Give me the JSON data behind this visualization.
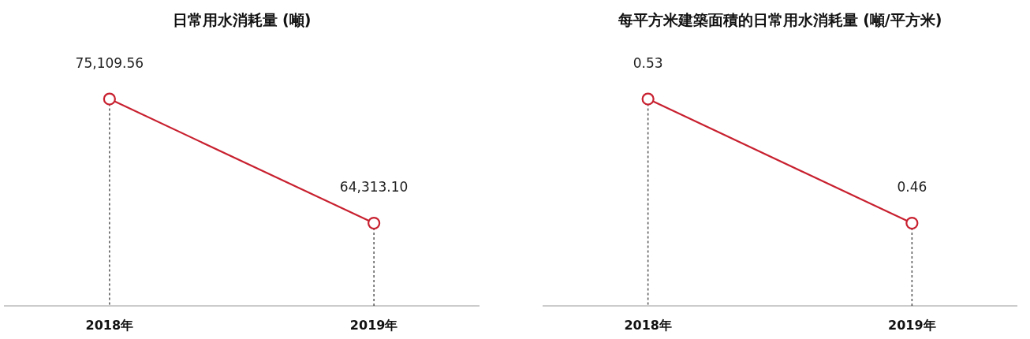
{
  "chart_data": [
    {
      "type": "line",
      "title": "日常用水消耗量 (噸)",
      "categories": [
        "2018年",
        "2019年"
      ],
      "series": [
        {
          "color": "#c8202f",
          "values": [
            75109.56,
            64313.1
          ],
          "value_labels": [
            "75,109.56",
            "64,313.10"
          ]
        }
      ],
      "tick_labels": "x",
      "marker": "circle",
      "grid": "x"
    },
    {
      "type": "line",
      "title": "每平方米建築面積的日常用水消耗量 (噸/平方米)",
      "categories": [
        "2018年",
        "2019年"
      ],
      "series": [
        {
          "color": "#c8202f",
          "values": [
            0.53,
            0.46
          ],
          "value_labels": [
            "0.53",
            "0.46"
          ]
        }
      ],
      "tick_labels": "x",
      "marker": "circle",
      "grid": "x"
    }
  ]
}
